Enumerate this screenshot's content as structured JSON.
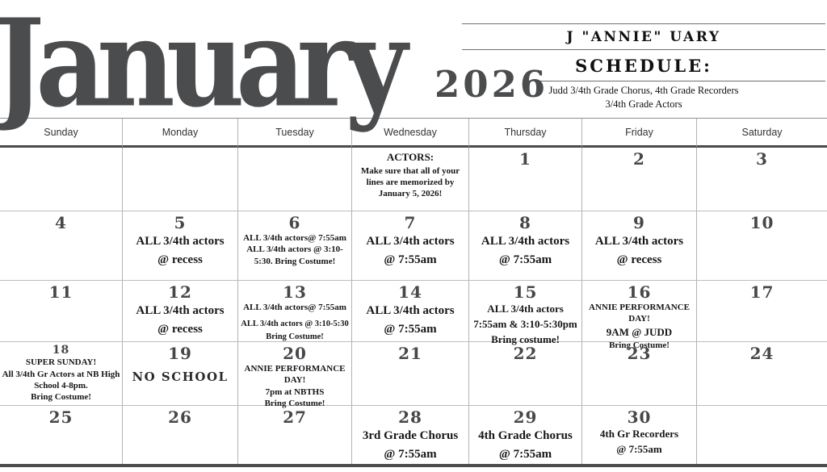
{
  "title": {
    "month": "January",
    "year": "2026"
  },
  "header": {
    "line1": "J \"ANNIE\" UARY",
    "line2": "SCHEDULE:",
    "sub1": "Judd 3/4th Grade Chorus, 4th Grade Recorders",
    "sub2": "3/4th Grade Actors"
  },
  "colors": {
    "title_gray": "#4a4c4e",
    "event_text": "#161616",
    "grid_light": "#b3b3b3",
    "grid_dark": "#4b4b4b"
  },
  "day_headers": [
    "Sunday",
    "Monday",
    "Tuesday",
    "Wednesday",
    "Thursday",
    "Friday",
    "Saturday"
  ],
  "weeks": [
    [
      {},
      {},
      {},
      {
        "lines": [
          {
            "t": "ACTORS:",
            "s": "lg"
          },
          {
            "t": "Make sure that all of your lines are memorized by January 5, 2026!",
            "s": "sm"
          }
        ]
      },
      {
        "num": "1"
      },
      {
        "num": "2"
      },
      {
        "num": "3"
      }
    ],
    [
      {
        "num": "4"
      },
      {
        "num": "5",
        "lines": [
          {
            "t": "ALL 3/4th actors",
            "s": "xl"
          },
          {
            "t": "@ recess",
            "s": "xl"
          }
        ]
      },
      {
        "num": "6",
        "lines": [
          {
            "t": "ALL 3/4th actors@ 7:55am",
            "s": "sm"
          },
          {
            "t": "ALL 3/4th actors @ 3:10-5:30. Bring Costume!",
            "s": "sm"
          }
        ]
      },
      {
        "num": "7",
        "lines": [
          {
            "t": "ALL 3/4th actors",
            "s": "xl"
          },
          {
            "t": "@ 7:55am",
            "s": "xl"
          }
        ]
      },
      {
        "num": "8",
        "lines": [
          {
            "t": "ALL 3/4th actors",
            "s": "xl"
          },
          {
            "t": "@ 7:55am",
            "s": "xl"
          }
        ]
      },
      {
        "num": "9",
        "lines": [
          {
            "t": "ALL 3/4th actors",
            "s": "xl"
          },
          {
            "t": "@ recess",
            "s": "xl"
          }
        ]
      },
      {
        "num": "10"
      }
    ],
    [
      {
        "num": "11"
      },
      {
        "num": "12",
        "lines": [
          {
            "t": "ALL 3/4th actors",
            "s": "xl"
          },
          {
            "t": "@ recess",
            "s": "xl"
          }
        ]
      },
      {
        "num": "13",
        "lines": [
          {
            "t": "ALL 3/4th actors@ 7:55am",
            "s": "sm"
          },
          {
            "t": "ALL 3/4th actors  @ 3:10-5:30",
            "s": "xs",
            "gap": true
          },
          {
            "t": "Bring Costume!",
            "s": "xs"
          }
        ]
      },
      {
        "num": "14",
        "lines": [
          {
            "t": "ALL 3/4th actors",
            "s": "xl"
          },
          {
            "t": "@ 7:55am",
            "s": "xl"
          }
        ]
      },
      {
        "num": "15",
        "lines": [
          {
            "t": "ALL 3/4th actors",
            "s": "lg"
          },
          {
            "t": "7:55am & 3:10-5:30pm",
            "s": "lg"
          },
          {
            "t": "Bring costume!",
            "s": "lg"
          }
        ]
      },
      {
        "num": "16",
        "lines": [
          {
            "t": "ANNIE PERFORMANCE DAY!",
            "s": "sm"
          },
          {
            "t": "9AM @ JUDD",
            "s": "lg"
          },
          {
            "t": "Bring Costume!",
            "s": "sm"
          }
        ]
      },
      {
        "num": "17"
      }
    ],
    [
      {
        "num": "18",
        "num_small": true,
        "lines": [
          {
            "t": "SUPER SUNDAY!",
            "s": "sm"
          },
          {
            "t": "All 3/4th Gr Actors at NB High",
            "s": "sm",
            "nowrap": true
          },
          {
            "t": "School  4-8pm.",
            "s": "sm"
          },
          {
            "t": "Bring Costume!",
            "s": "sm"
          }
        ]
      },
      {
        "num": "19",
        "lines": [
          {
            "t": "NO SCHOOL",
            "s": "stencil"
          }
        ]
      },
      {
        "num": "20",
        "lines": [
          {
            "t": "ANNIE PERFORMANCE DAY!",
            "s": "sm"
          },
          {
            "t": "7pm at NBTHS",
            "s": "sm"
          },
          {
            "t": "Bring Costume!",
            "s": "sm"
          }
        ]
      },
      {
        "num": "21"
      },
      {
        "num": "22"
      },
      {
        "num": "23"
      },
      {
        "num": "24"
      }
    ],
    [
      {
        "num": "25"
      },
      {
        "num": "26"
      },
      {
        "num": "27"
      },
      {
        "num": "28",
        "lines": [
          {
            "t": "3rd Grade Chorus",
            "s": "xl"
          },
          {
            "t": "@ 7:55am",
            "s": "xl"
          }
        ]
      },
      {
        "num": "29",
        "lines": [
          {
            "t": "4th Grade Chorus",
            "s": "xl"
          },
          {
            "t": "@ 7:55am",
            "s": "xl"
          }
        ]
      },
      {
        "num": "30",
        "lines": [
          {
            "t": "4th Gr Recorders",
            "s": "lg"
          },
          {
            "t": "@ 7:55am",
            "s": "lg"
          }
        ]
      },
      {}
    ]
  ]
}
